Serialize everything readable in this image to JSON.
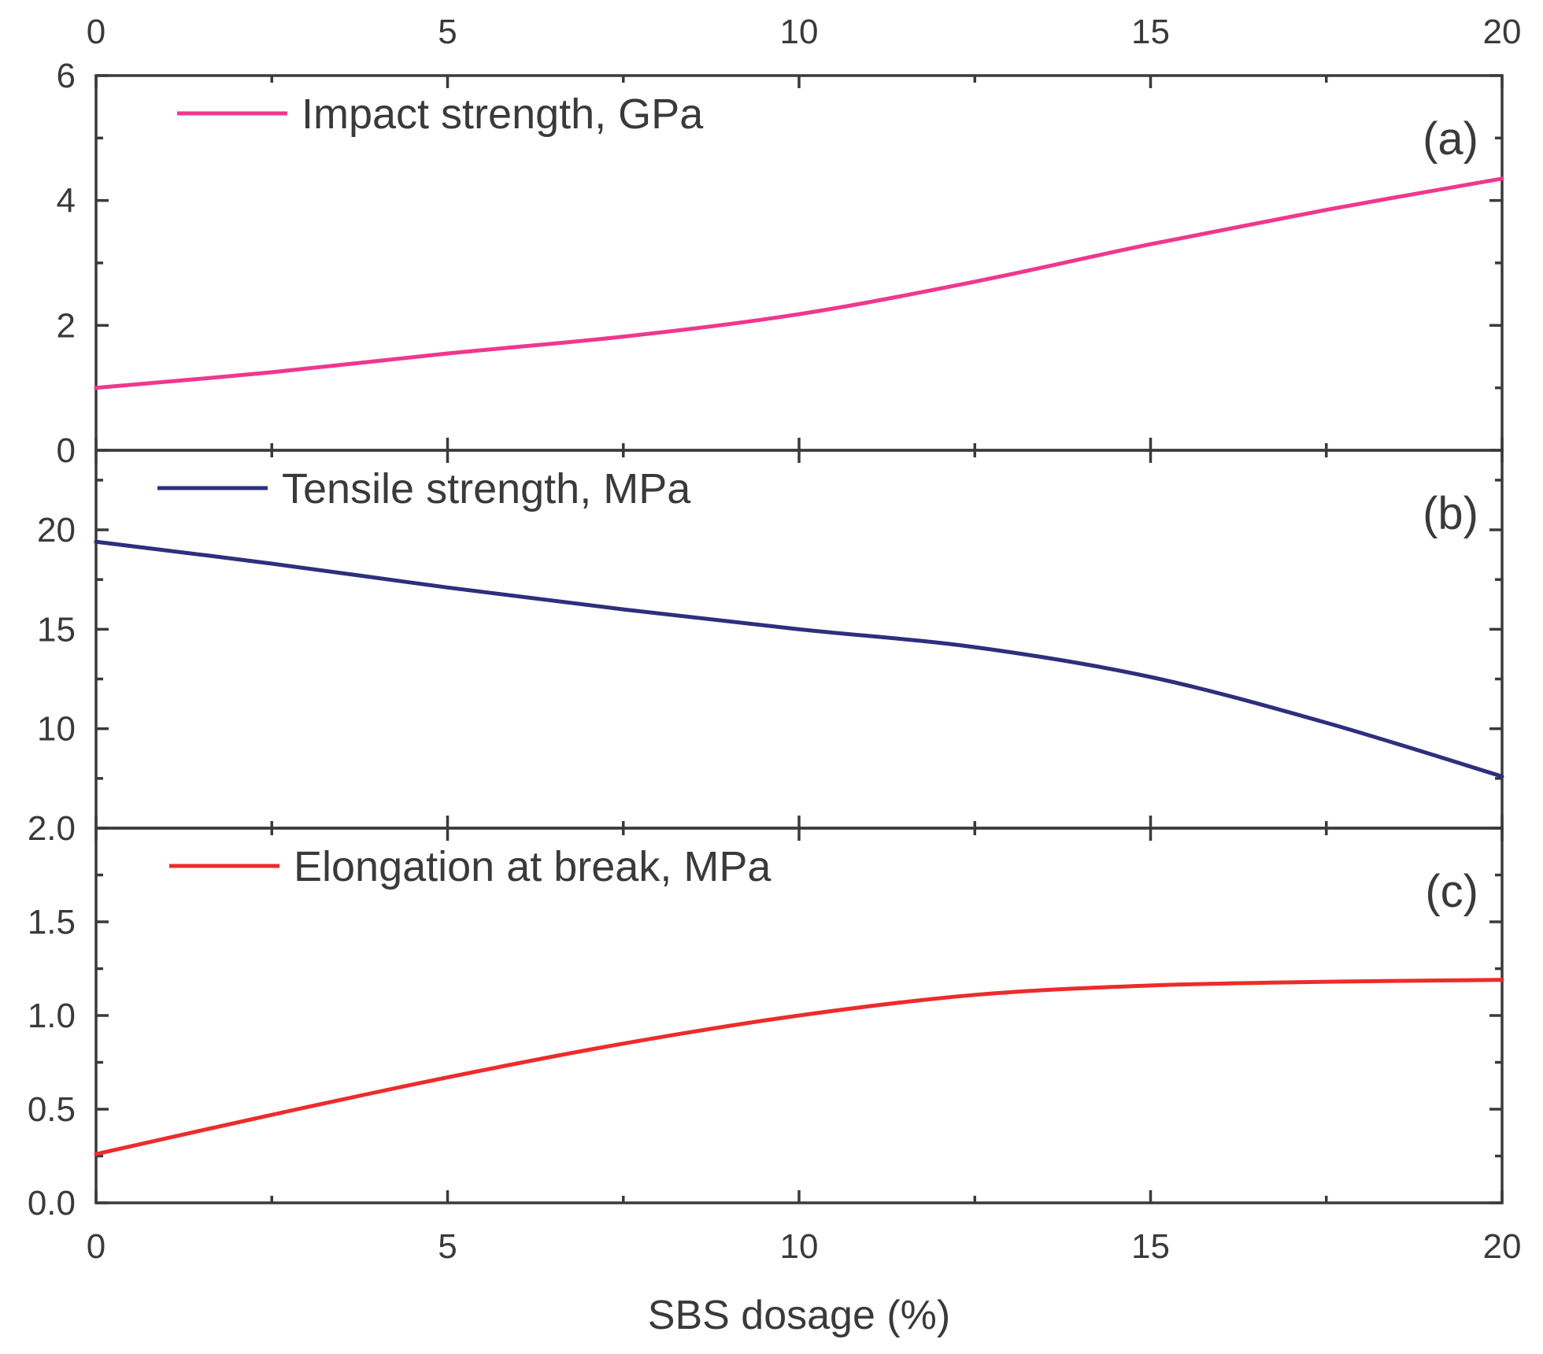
{
  "chart_data": {
    "type": "line",
    "x_range": [
      0,
      20
    ],
    "x_ticks": [
      0,
      5,
      10,
      15,
      20
    ],
    "x_tick_labels": [
      "0",
      "5",
      "10",
      "15",
      "20"
    ],
    "x_tick_labels_top": [
      "0",
      "5",
      "10",
      "15",
      "20"
    ],
    "xlabel": "SBS dosage (%)",
    "panels": [
      {
        "tag": "(a)",
        "legend_label": "Impact strength, GPa",
        "color": "#f0378e",
        "ylim": [
          0,
          6
        ],
        "y_ticks": [
          0,
          2,
          4,
          6
        ],
        "y_tick_labels": [
          "0",
          "2",
          "4",
          "6"
        ],
        "x": [
          0,
          2.5,
          5,
          7.5,
          10,
          12.5,
          15,
          17.5,
          20
        ],
        "y": [
          1.0,
          1.25,
          1.55,
          1.82,
          2.18,
          2.7,
          3.3,
          3.85,
          4.35
        ]
      },
      {
        "tag": "(b)",
        "legend_label": "Tensile strength, MPa",
        "color": "#2e2f7c",
        "ylim": [
          5,
          24
        ],
        "y_ticks": [
          10,
          15,
          20
        ],
        "y_tick_labels": [
          "10",
          "15",
          "20"
        ],
        "x": [
          0,
          2.5,
          5,
          7.5,
          10,
          12.5,
          15,
          17.5,
          20
        ],
        "y": [
          19.4,
          18.3,
          17.1,
          16.0,
          15.0,
          14.1,
          12.6,
          10.3,
          7.6
        ]
      },
      {
        "tag": "(c)",
        "legend_label": "Elongation at break, MPa",
        "color": "#ee2b2b",
        "ylim": [
          0,
          2.0
        ],
        "y_ticks": [
          0.0,
          0.5,
          1.0,
          1.5,
          2.0
        ],
        "y_tick_labels": [
          "0.0",
          "0.5",
          "1.0",
          "1.5",
          "2.0"
        ],
        "x": [
          0,
          2.5,
          5,
          7.5,
          10,
          12.5,
          15,
          17.5,
          20
        ],
        "y": [
          0.26,
          0.47,
          0.67,
          0.85,
          1.0,
          1.11,
          1.16,
          1.18,
          1.19
        ]
      }
    ]
  }
}
